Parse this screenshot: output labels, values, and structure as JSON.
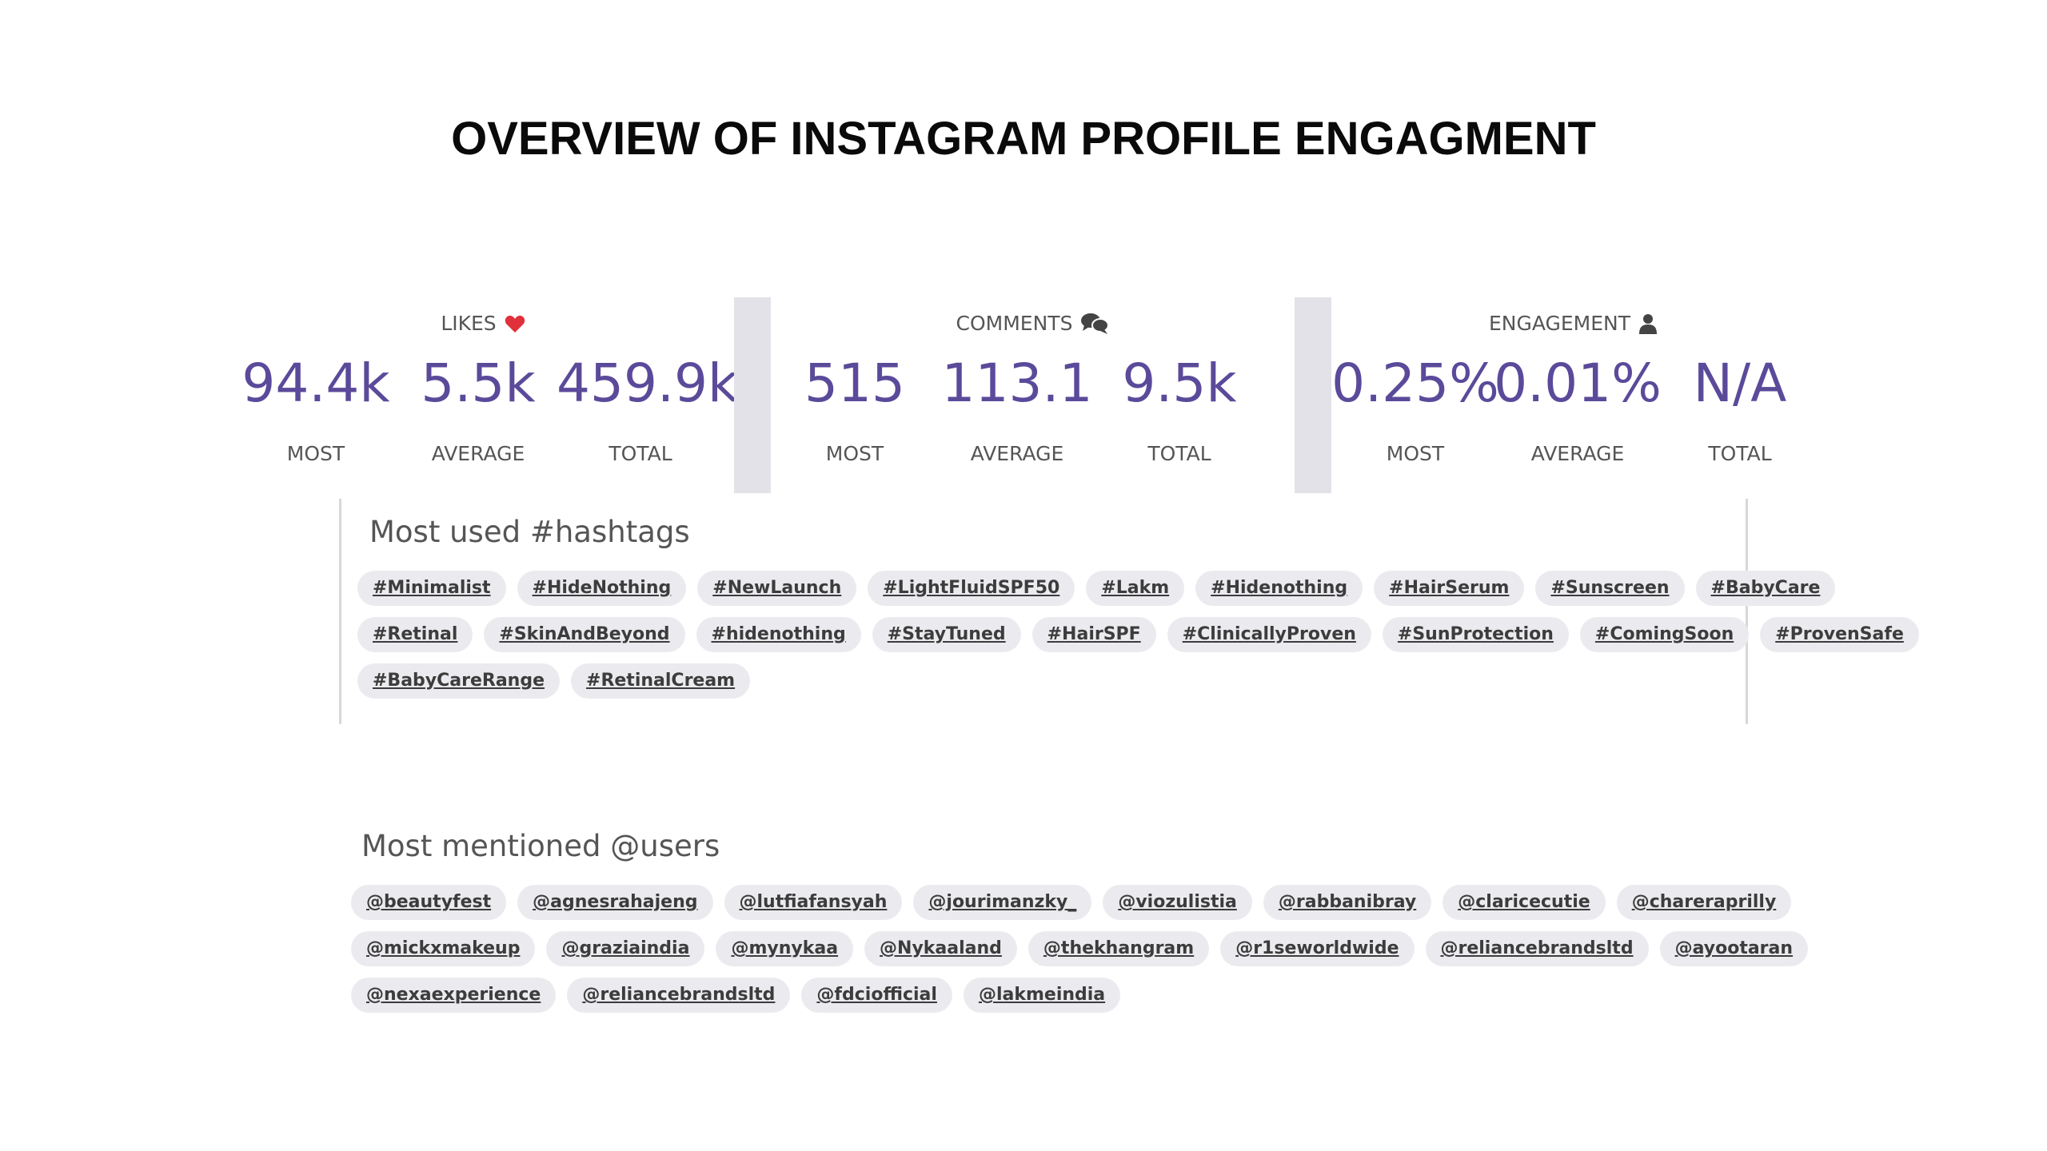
{
  "page": {
    "title": "OVERVIEW OF INSTAGRAM PROFILE ENGAGMENT"
  },
  "colors": {
    "accent": "#5b4a9a",
    "heart": "#e0303a",
    "chip_bg": "#ebebef"
  },
  "likes": {
    "title": "LIKES",
    "icon": "heart-icon",
    "most": "94.4k",
    "average": "5.5k",
    "total": "459.9k",
    "most_label": "MOST",
    "average_label": "AVERAGE",
    "total_label": "TOTAL"
  },
  "comments": {
    "title": "COMMENTS",
    "icon": "comments-icon",
    "most": "515",
    "average": "113.1",
    "total": "9.5k",
    "most_label": "MOST",
    "average_label": "AVERAGE",
    "total_label": "TOTAL"
  },
  "engagement": {
    "title": "ENGAGEMENT",
    "icon": "user-icon",
    "most": "0.25%",
    "average": "0.01%",
    "total": "N/A",
    "most_label": "MOST",
    "average_label": "AVERAGE",
    "total_label": "TOTAL"
  },
  "hashtags": {
    "title": "Most used #hashtags",
    "items": [
      "#Minimalist",
      "#HideNothing",
      "#NewLaunch",
      "#LightFluidSPF50",
      "#Lakm",
      "#Hidenothing",
      "#HairSerum",
      "#Sunscreen",
      "#BabyCare",
      "#Retinal",
      "#SkinAndBeyond",
      "#hidenothing",
      "#StayTuned",
      "#HairSPF",
      "#ClinicallyProven",
      "#SunProtection",
      "#ComingSoon",
      "#ProvenSafe",
      "#BabyCareRange",
      "#RetinalCream"
    ]
  },
  "mentions": {
    "title": "Most mentioned @users",
    "items": [
      "@beautyfest",
      "@agnesrahajeng",
      "@lutfiafansyah",
      "@jourimanzky_",
      "@viozulistia",
      "@rabbanibray",
      "@claricecutie",
      "@chareraprilly",
      "@mickxmakeup",
      "@graziaindia",
      "@mynykaa",
      "@Nykaaland",
      "@thekhangram",
      "@r1seworldwide",
      "@reliancebrandsltd",
      "@ayootaran",
      "@nexaexperience",
      "@reliancebrandsltd",
      "@fdciofficial",
      "@lakmeindia"
    ]
  }
}
